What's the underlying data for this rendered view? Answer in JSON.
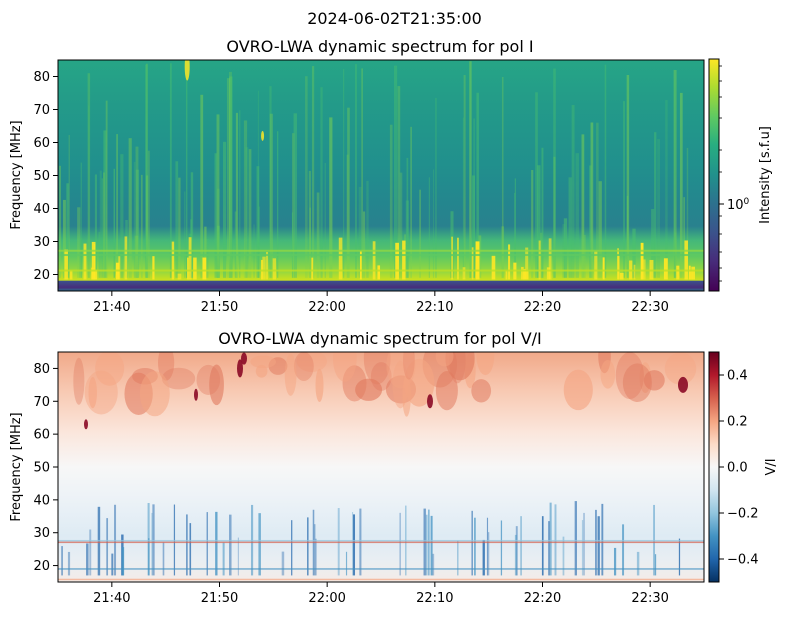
{
  "figure": {
    "suptitle": "2024-06-02T21:35:00"
  },
  "chart_data": [
    {
      "type": "heatmap",
      "title": "OVRO-LWA dynamic spectrum for pol I",
      "xlabel": "",
      "ylabel": "Frequency [MHz]",
      "x_time_range": [
        "21:35",
        "22:35"
      ],
      "x_ticks": [
        "21:40",
        "21:50",
        "22:00",
        "22:10",
        "22:20",
        "22:30"
      ],
      "y_ticks": [
        20,
        30,
        40,
        50,
        60,
        70,
        80
      ],
      "ylim": [
        15,
        85
      ],
      "colormap": "viridis",
      "colorbar": {
        "label": "Intensity [s.f.u]",
        "scale": "log",
        "tick_labels": [
          "10^0"
        ]
      },
      "features": [
        {
          "band_mhz": [
            18,
            28
          ],
          "description": "bright yellow vertical bursts"
        },
        {
          "band_mhz": [
            15,
            18
          ],
          "description": "dark low-frequency strip"
        }
      ]
    },
    {
      "type": "heatmap",
      "title": "OVRO-LWA dynamic spectrum for pol V/I",
      "xlabel": "",
      "ylabel": "Frequency [MHz]",
      "x_time_range": [
        "21:35",
        "22:35"
      ],
      "x_ticks": [
        "21:40",
        "21:50",
        "22:00",
        "22:10",
        "22:20",
        "22:30"
      ],
      "y_ticks": [
        20,
        30,
        40,
        50,
        60,
        70,
        80
      ],
      "ylim": [
        15,
        85
      ],
      "colormap": "RdBu_r",
      "colorbar": {
        "label": "V/I",
        "vmin": -0.5,
        "vmax": 0.5,
        "ticks": [
          0.4,
          0.2,
          0.0,
          -0.2,
          -0.4
        ],
        "tick_labels": [
          "0.4",
          "0.2",
          "0.0",
          "−0.2",
          "−0.4"
        ]
      }
    }
  ]
}
